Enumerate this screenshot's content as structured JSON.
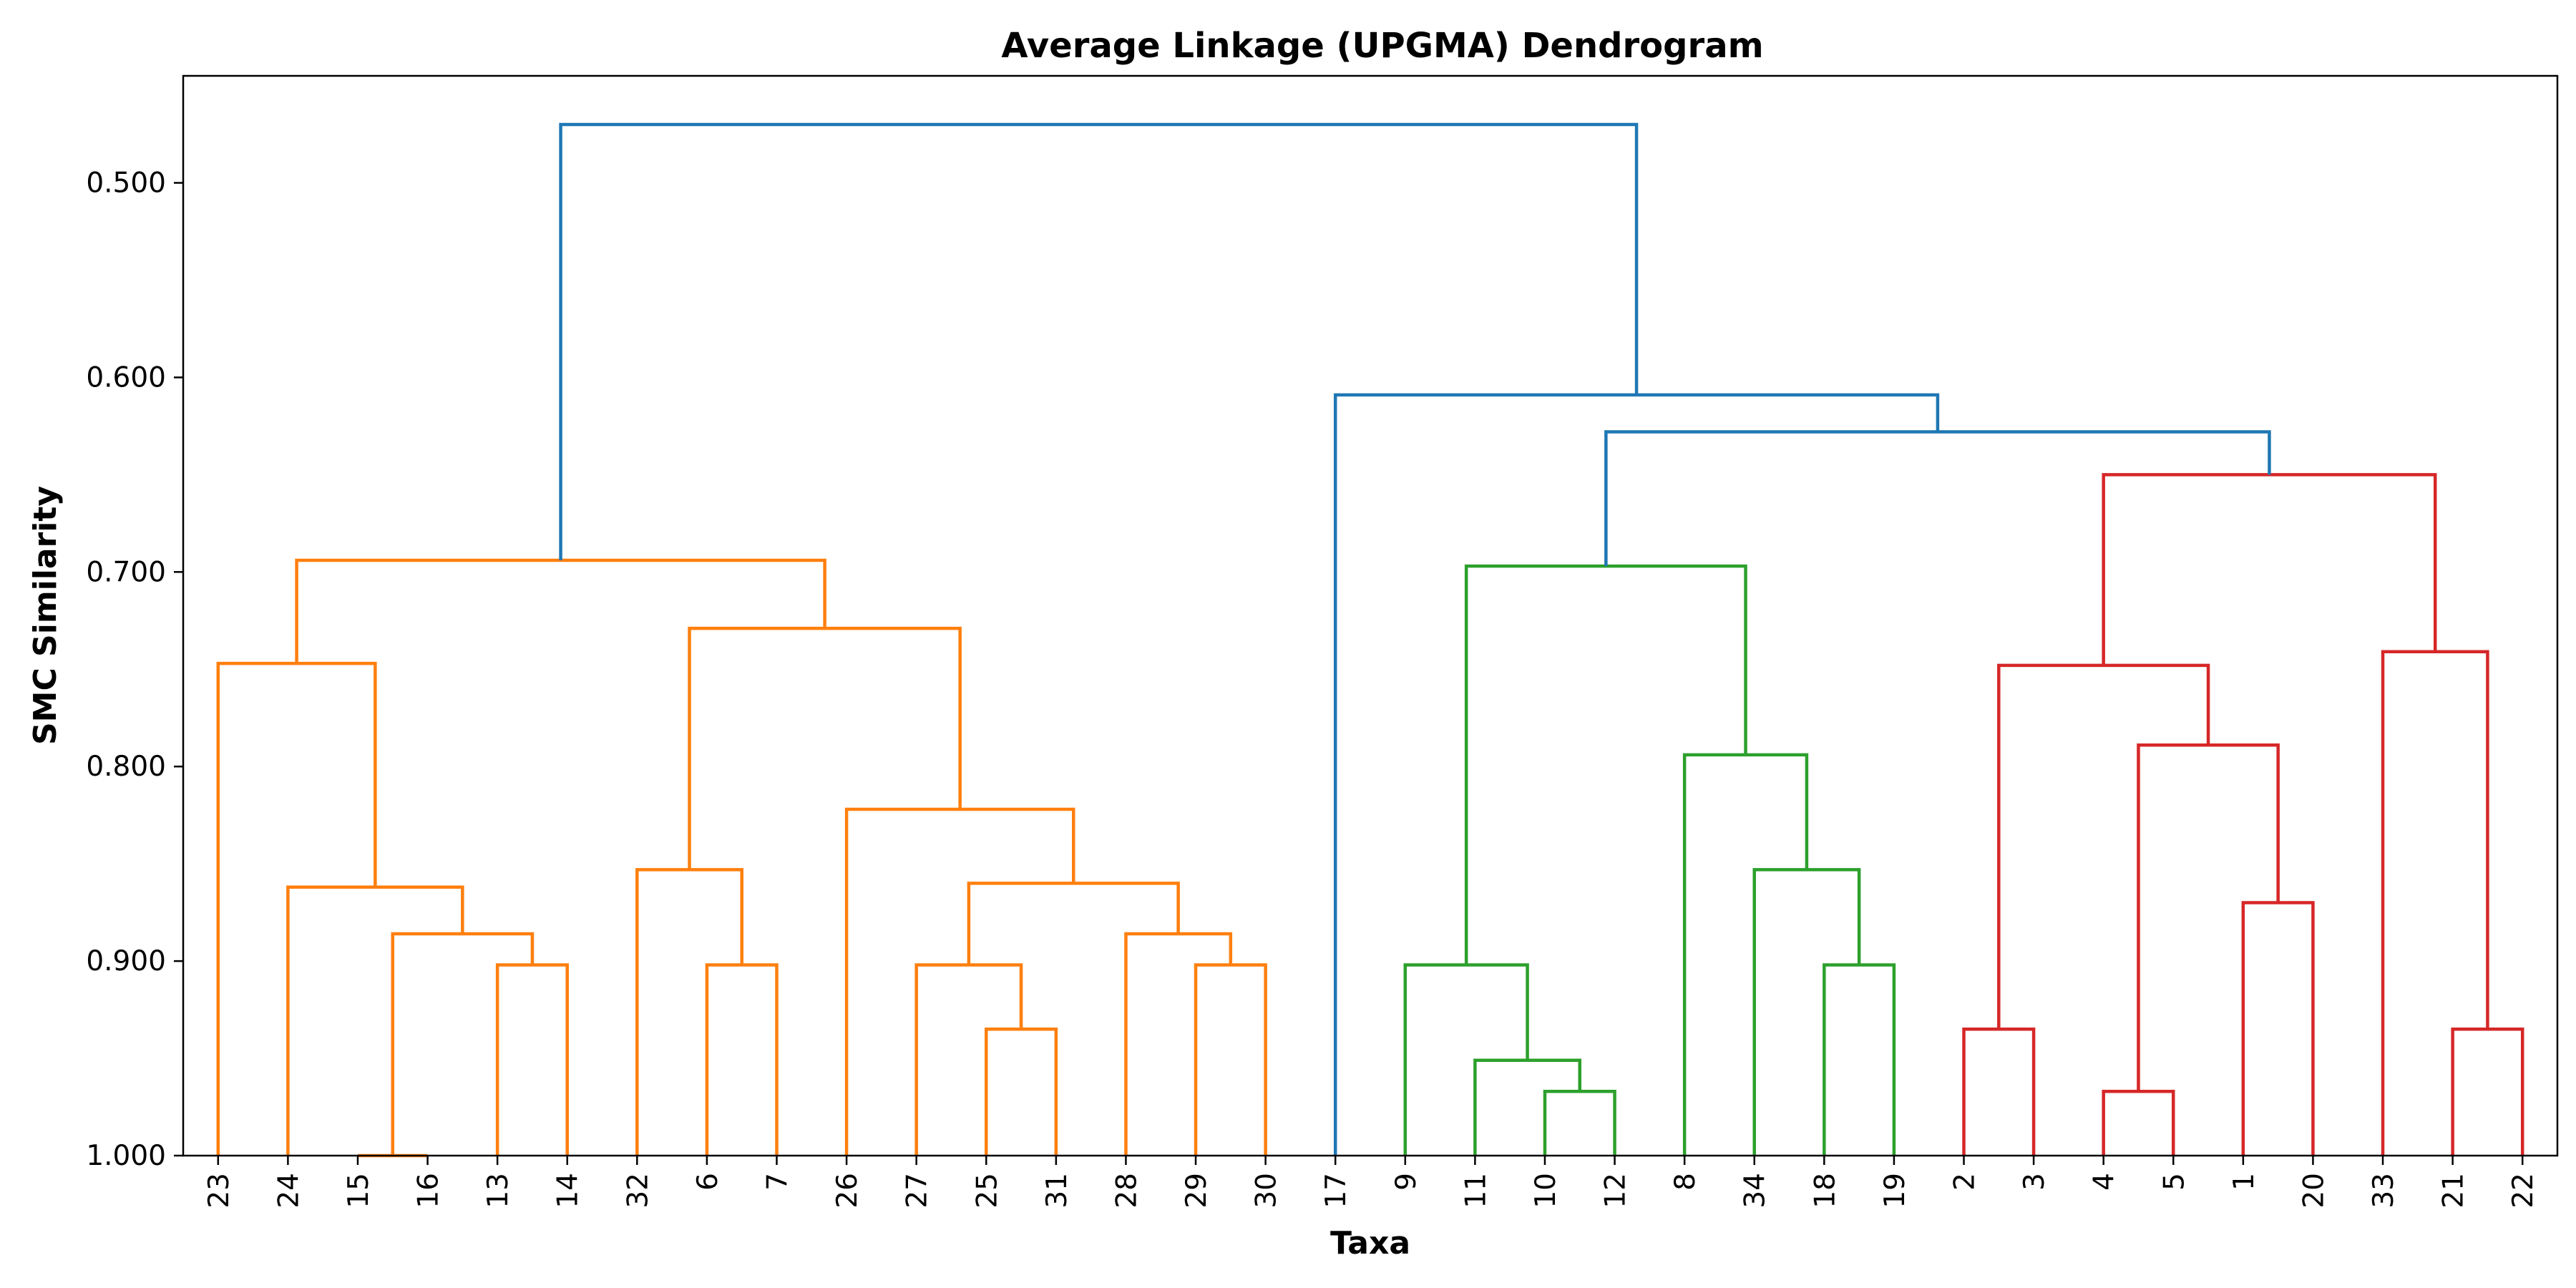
{
  "chart_data": {
    "type": "dendrogram",
    "title": "Average Linkage (UPGMA) Dendrogram",
    "xlabel": "Taxa",
    "ylabel": "SMC Similarity",
    "ylim": [
      1.0,
      0.445
    ],
    "y_inverted": true,
    "grid": false,
    "yticks": [
      "0.500",
      "0.600",
      "0.700",
      "0.800",
      "0.900",
      "1.000"
    ],
    "ytick_values": [
      0.5,
      0.6,
      0.7,
      0.8,
      0.9,
      1.0
    ],
    "leaves": [
      "23",
      "24",
      "15",
      "16",
      "13",
      "14",
      "32",
      "6",
      "7",
      "26",
      "27",
      "25",
      "31",
      "28",
      "29",
      "30",
      "17",
      "9",
      "11",
      "10",
      "12",
      "8",
      "34",
      "18",
      "19",
      "2",
      "3",
      "4",
      "5",
      "1",
      "20",
      "33",
      "21",
      "22"
    ],
    "colors": {
      "C1": "#ff7f0e",
      "C2": "#2ca02c",
      "C3": "#d62728",
      "above": "#1f77b4"
    },
    "merges": [
      {
        "left": "15",
        "right": "16",
        "similarity": 1.0,
        "color": "C1"
      },
      {
        "left": "13",
        "right": "14",
        "similarity": 0.902,
        "color": "C1"
      },
      {
        "left": "15+16",
        "right": "13+14",
        "similarity": 0.886,
        "color": "C1"
      },
      {
        "left": "24",
        "right": "15+16+13+14",
        "similarity": 0.862,
        "color": "C1"
      },
      {
        "left": "23",
        "right": "24+15+16+13+14",
        "similarity": 0.747,
        "color": "C1"
      },
      {
        "left": "6",
        "right": "7",
        "similarity": 0.902,
        "color": "C1"
      },
      {
        "left": "32",
        "right": "6+7",
        "similarity": 0.853,
        "color": "C1"
      },
      {
        "left": "25",
        "right": "31",
        "similarity": 0.935,
        "color": "C1"
      },
      {
        "left": "27",
        "right": "25+31",
        "similarity": 0.902,
        "color": "C1"
      },
      {
        "left": "29",
        "right": "30",
        "similarity": 0.902,
        "color": "C1"
      },
      {
        "left": "28",
        "right": "29+30",
        "similarity": 0.886,
        "color": "C1"
      },
      {
        "left": "27+25+31",
        "right": "28+29+30",
        "similarity": 0.86,
        "color": "C1"
      },
      {
        "left": "26",
        "right": "27+25+31+28+29+30",
        "similarity": 0.822,
        "color": "C1"
      },
      {
        "left": "32+6+7",
        "right": "26+...+30",
        "similarity": 0.729,
        "color": "C1"
      },
      {
        "left": "23+...+14",
        "right": "32+...+30",
        "similarity": 0.694,
        "color": "C1"
      },
      {
        "left": "10",
        "right": "12",
        "similarity": 0.967,
        "color": "C2"
      },
      {
        "left": "11",
        "right": "10+12",
        "similarity": 0.951,
        "color": "C2"
      },
      {
        "left": "9",
        "right": "11+10+12",
        "similarity": 0.902,
        "color": "C2"
      },
      {
        "left": "18",
        "right": "19",
        "similarity": 0.902,
        "color": "C2"
      },
      {
        "left": "34",
        "right": "18+19",
        "similarity": 0.853,
        "color": "C2"
      },
      {
        "left": "8",
        "right": "34+18+19",
        "similarity": 0.794,
        "color": "C2"
      },
      {
        "left": "9+11+10+12",
        "right": "8+34+18+19",
        "similarity": 0.697,
        "color": "C2"
      },
      {
        "left": "2",
        "right": "3",
        "similarity": 0.935,
        "color": "C3"
      },
      {
        "left": "4",
        "right": "5",
        "similarity": 0.967,
        "color": "C3"
      },
      {
        "left": "1",
        "right": "20",
        "similarity": 0.87,
        "color": "C3"
      },
      {
        "left": "4+5",
        "right": "1+20",
        "similarity": 0.789,
        "color": "C3"
      },
      {
        "left": "2+3",
        "right": "4+5+1+20",
        "similarity": 0.748,
        "color": "C3"
      },
      {
        "left": "21",
        "right": "22",
        "similarity": 0.935,
        "color": "C3"
      },
      {
        "left": "33",
        "right": "21+22",
        "similarity": 0.741,
        "color": "C3"
      },
      {
        "left": "2+3+4+5+1+20",
        "right": "33+21+22",
        "similarity": 0.65,
        "color": "C3"
      },
      {
        "left": "9+...+19",
        "right": "2+...+22",
        "similarity": 0.628,
        "color": "above"
      },
      {
        "left": "17",
        "right": "9+...+22",
        "similarity": 0.609,
        "color": "above"
      },
      {
        "left": "23+...+30",
        "right": "17+...+22",
        "similarity": 0.47,
        "color": "above"
      }
    ]
  }
}
